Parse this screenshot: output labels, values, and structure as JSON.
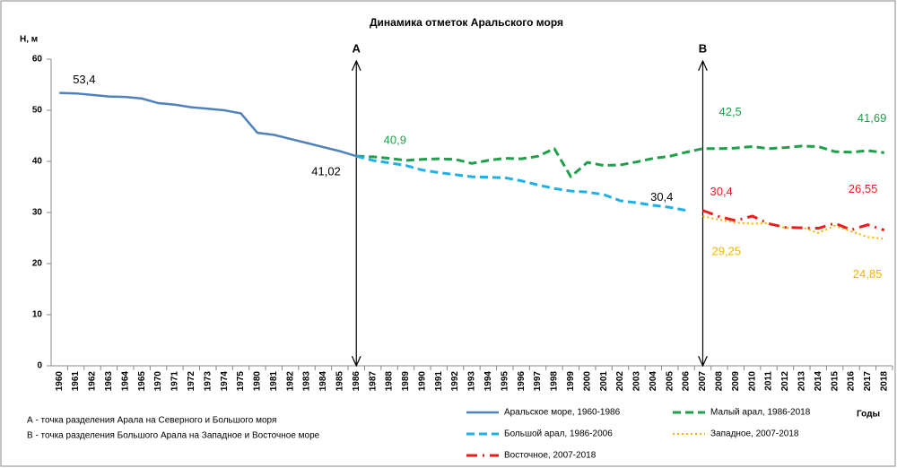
{
  "chart_data": {
    "type": "line",
    "title": "Динамика  отметок Аральского моря",
    "y_label": "H, м",
    "x_label": "Годы",
    "categories": [
      "1960",
      "1961",
      "1962",
      "1963",
      "1964",
      "1965",
      "1970",
      "1971",
      "1972",
      "1973",
      "1974",
      "1975",
      "1980",
      "1981",
      "1982",
      "1983",
      "1984",
      "1985",
      "1986",
      "1987",
      "1988",
      "1989",
      "1990",
      "1991",
      "1992",
      "1993",
      "1994",
      "1995",
      "1996",
      "1997",
      "1998",
      "1999",
      "2000",
      "2001",
      "2002",
      "2003",
      "2004",
      "2005",
      "2006",
      "2007",
      "2008",
      "2009",
      "2010",
      "2011",
      "2012",
      "2013",
      "2014",
      "2015",
      "2016",
      "2017",
      "2018"
    ],
    "ylim": [
      0,
      60
    ],
    "yticks": [
      0,
      10,
      20,
      30,
      40,
      50,
      60
    ],
    "grid": false,
    "series": [
      {
        "name": "Аральское море, 1960-1986",
        "color": "#4f81bd",
        "dash": "solid",
        "values": [
          53.4,
          53.3,
          53.0,
          52.7,
          52.6,
          52.3,
          51.4,
          51.1,
          50.6,
          50.3,
          50.0,
          49.4,
          45.6,
          45.2,
          44.4,
          43.6,
          42.8,
          42.0,
          41.02,
          null,
          null,
          null,
          null,
          null,
          null,
          null,
          null,
          null,
          null,
          null,
          null,
          null,
          null,
          null,
          null,
          null,
          null,
          null,
          null,
          null,
          null,
          null,
          null,
          null,
          null,
          null,
          null,
          null,
          null,
          null,
          null
        ],
        "value_labels": [
          "53,4",
          null,
          null,
          null,
          null,
          null,
          null,
          null,
          null,
          null,
          null,
          null,
          null,
          null,
          null,
          null,
          null,
          null,
          "41,02",
          null,
          null,
          null,
          null,
          null,
          null,
          null,
          null,
          null,
          null,
          null,
          null,
          null,
          null,
          null,
          null,
          null,
          null,
          null,
          null,
          null,
          null,
          null,
          null,
          null,
          null,
          null,
          null,
          null,
          null,
          null,
          null
        ]
      },
      {
        "name": "Малый арал, 1986-2018",
        "color": "#1ea04a",
        "dash": "dashed",
        "values": [
          null,
          null,
          null,
          null,
          null,
          null,
          null,
          null,
          null,
          null,
          null,
          null,
          null,
          null,
          null,
          null,
          null,
          null,
          41.02,
          40.9,
          40.6,
          40.2,
          40.4,
          40.5,
          40.4,
          39.6,
          40.2,
          40.6,
          40.5,
          41.0,
          42.5,
          37.0,
          39.8,
          39.2,
          39.3,
          39.9,
          40.6,
          41.0,
          41.8,
          42.5,
          42.5,
          42.6,
          42.9,
          42.5,
          42.7,
          43.0,
          42.9,
          41.9,
          41.8,
          42.1,
          41.69
        ],
        "value_labels": [
          null,
          null,
          null,
          null,
          null,
          null,
          null,
          null,
          null,
          null,
          null,
          null,
          null,
          null,
          null,
          null,
          null,
          null,
          null,
          "40,9",
          null,
          null,
          null,
          null,
          null,
          null,
          null,
          null,
          null,
          null,
          null,
          null,
          null,
          null,
          null,
          null,
          null,
          null,
          null,
          "42,5",
          null,
          null,
          null,
          null,
          null,
          null,
          null,
          null,
          null,
          null,
          "41,69"
        ]
      },
      {
        "name": "Большой арал, 1986-2006",
        "color": "#1fb0e8",
        "dash": "dashed",
        "values": [
          null,
          null,
          null,
          null,
          null,
          null,
          null,
          null,
          null,
          null,
          null,
          null,
          null,
          null,
          null,
          null,
          null,
          null,
          41.02,
          40.2,
          39.7,
          39.2,
          38.3,
          37.8,
          37.4,
          37.0,
          36.9,
          36.8,
          36.2,
          35.4,
          34.7,
          34.2,
          34.0,
          33.5,
          32.3,
          31.9,
          31.4,
          31.0,
          30.4,
          null,
          null,
          null,
          null,
          null,
          null,
          null,
          null,
          null,
          null,
          null,
          null
        ],
        "value_labels": [
          null,
          null,
          null,
          null,
          null,
          null,
          null,
          null,
          null,
          null,
          null,
          null,
          null,
          null,
          null,
          null,
          null,
          null,
          null,
          null,
          null,
          null,
          null,
          null,
          null,
          null,
          null,
          null,
          null,
          null,
          null,
          null,
          null,
          null,
          null,
          null,
          null,
          null,
          "30,4",
          null,
          null,
          null,
          null,
          null,
          null,
          null,
          null,
          null,
          null,
          null,
          null
        ]
      },
      {
        "name": "Западное, 2007-2018",
        "color": "#f5b400",
        "dash": "dotted",
        "values": [
          null,
          null,
          null,
          null,
          null,
          null,
          null,
          null,
          null,
          null,
          null,
          null,
          null,
          null,
          null,
          null,
          null,
          null,
          null,
          null,
          null,
          null,
          null,
          null,
          null,
          null,
          null,
          null,
          null,
          null,
          null,
          null,
          null,
          null,
          null,
          null,
          null,
          null,
          null,
          29.25,
          28.6,
          28.0,
          27.8,
          27.9,
          27.0,
          27.1,
          26.0,
          27.4,
          26.3,
          25.2,
          24.85
        ],
        "value_labels": [
          null,
          null,
          null,
          null,
          null,
          null,
          null,
          null,
          null,
          null,
          null,
          null,
          null,
          null,
          null,
          null,
          null,
          null,
          null,
          null,
          null,
          null,
          null,
          null,
          null,
          null,
          null,
          null,
          null,
          null,
          null,
          null,
          null,
          null,
          null,
          null,
          null,
          null,
          null,
          "29,25",
          null,
          null,
          null,
          null,
          null,
          null,
          null,
          null,
          null,
          null,
          "24,85"
        ]
      },
      {
        "name": "Восточное, 2007-2018",
        "color": "#ee1c1c",
        "dash": "dashdot",
        "values": [
          null,
          null,
          null,
          null,
          null,
          null,
          null,
          null,
          null,
          null,
          null,
          null,
          null,
          null,
          null,
          null,
          null,
          null,
          null,
          null,
          null,
          null,
          null,
          null,
          null,
          null,
          null,
          null,
          null,
          null,
          null,
          null,
          null,
          null,
          null,
          null,
          null,
          null,
          null,
          30.4,
          29.2,
          28.4,
          29.3,
          27.8,
          27.1,
          27.0,
          26.9,
          27.9,
          26.6,
          27.6,
          26.55
        ],
        "value_labels": [
          null,
          null,
          null,
          null,
          null,
          null,
          null,
          null,
          null,
          null,
          null,
          null,
          null,
          null,
          null,
          null,
          null,
          null,
          null,
          null,
          null,
          null,
          null,
          null,
          null,
          null,
          null,
          null,
          null,
          null,
          null,
          null,
          null,
          null,
          null,
          null,
          null,
          null,
          null,
          "30,4",
          null,
          null,
          null,
          null,
          null,
          null,
          null,
          null,
          null,
          null,
          "26,55"
        ]
      }
    ],
    "markers": [
      {
        "label": "A",
        "category": "1986"
      },
      {
        "label": "B",
        "category": "2007"
      }
    ],
    "notes": [
      "А - точка разделения Арала на Северного и Большого моря",
      "В - точка разделения Большого Арала на Западное и Восточное море"
    ]
  }
}
